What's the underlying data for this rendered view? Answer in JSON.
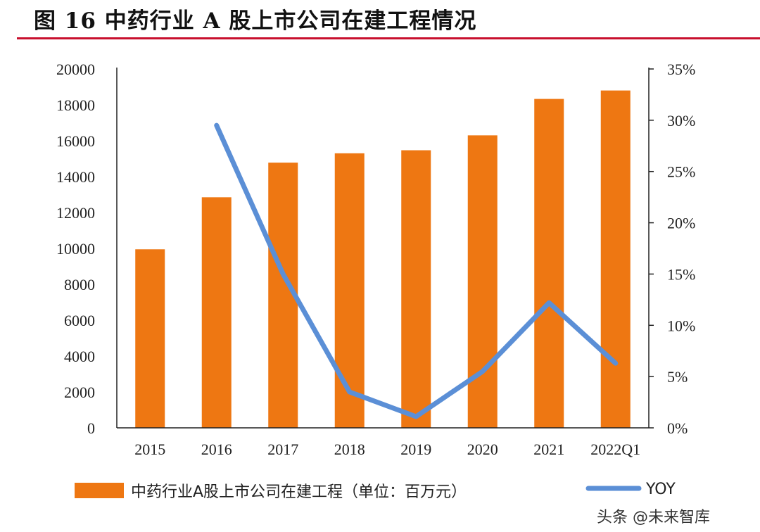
{
  "title": "图 16 中药行业 A 股上市公司在建工程情况",
  "colors": {
    "bar": "#ee7712",
    "line": "#5b8fd6",
    "rule": "#c8102e",
    "axis": "#222222"
  },
  "chart_data": {
    "type": "bar",
    "categories": [
      "2015",
      "2016",
      "2017",
      "2018",
      "2019",
      "2020",
      "2021",
      "2022Q1"
    ],
    "series": [
      {
        "name": "中药行业A股上市公司在建工程（单位：百万元）",
        "type": "bar",
        "axis": "left",
        "values": [
          9950,
          12850,
          14780,
          15300,
          15470,
          16300,
          18330,
          18800
        ]
      },
      {
        "name": "YOY",
        "type": "line",
        "axis": "right",
        "values": [
          null,
          0.295,
          0.15,
          0.035,
          0.011,
          0.055,
          0.122,
          0.063
        ]
      }
    ],
    "y_left": {
      "min": 0,
      "max": 20000,
      "ticks": [
        "0",
        "2000",
        "4000",
        "6000",
        "8000",
        "10000",
        "12000",
        "14000",
        "16000",
        "18000",
        "20000"
      ]
    },
    "y_right": {
      "min": 0,
      "max": 0.35,
      "ticks": [
        "0%",
        "5%",
        "10%",
        "15%",
        "20%",
        "25%",
        "30%",
        "35%"
      ]
    }
  },
  "legend": {
    "bar_label": "中药行业A股上市公司在建工程（单位：百万元）",
    "line_label": "YOY"
  },
  "watermark": "头条 @未来智库"
}
